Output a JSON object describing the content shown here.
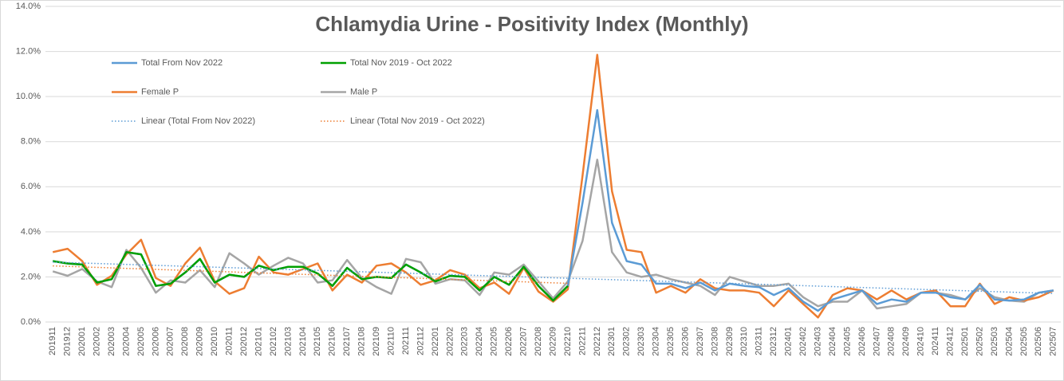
{
  "chart_data": {
    "type": "line",
    "title": "Chlamydia Urine - Positivity Index (Monthly)",
    "categories": [
      "201911",
      "201912",
      "202001",
      "202002",
      "202003",
      "202004",
      "202005",
      "202006",
      "202007",
      "202008",
      "202009",
      "202010",
      "202011",
      "202012",
      "202101",
      "202102",
      "202103",
      "202104",
      "202105",
      "202106",
      "202107",
      "202108",
      "202109",
      "202110",
      "202111",
      "202112",
      "202201",
      "202202",
      "202203",
      "202204",
      "202205",
      "202206",
      "202207",
      "202208",
      "202209",
      "202210",
      "202211",
      "202212",
      "202301",
      "202302",
      "202303",
      "202304",
      "202305",
      "202306",
      "202307",
      "202308",
      "202309",
      "202310",
      "202311",
      "202312",
      "202401",
      "202402",
      "202403",
      "202404",
      "202405",
      "202406",
      "202407",
      "202408",
      "202409",
      "202410",
      "202411",
      "202412",
      "202501",
      "202502",
      "202503",
      "202504",
      "202505",
      "202506",
      "202507"
    ],
    "ylim": [
      0,
      14
    ],
    "yticks": [
      {
        "value": 0,
        "label": "0.0%"
      },
      {
        "value": 2,
        "label": "2.0%"
      },
      {
        "value": 4,
        "label": "4.0%"
      },
      {
        "value": 6,
        "label": "6.0%"
      },
      {
        "value": 8,
        "label": "8.0%"
      },
      {
        "value": 10,
        "label": "10.0%"
      },
      {
        "value": 12,
        "label": "12.0%"
      },
      {
        "value": 14,
        "label": "14.0%"
      }
    ],
    "grid": true,
    "series": [
      {
        "name": "Total From Nov 2022",
        "color": "#5b9bd5",
        "trendline": {
          "name": "Linear (Total From Nov 2022)",
          "color": "#5b9bd5"
        },
        "values": [
          2.7,
          2.6,
          2.55,
          1.75,
          1.9,
          3.1,
          3.0,
          1.6,
          1.7,
          2.2,
          2.8,
          1.75,
          2.1,
          2.0,
          2.5,
          2.3,
          2.45,
          2.45,
          2.15,
          1.6,
          2.4,
          1.9,
          2.0,
          1.95,
          2.55,
          2.2,
          1.8,
          2.05,
          2.0,
          1.4,
          2.0,
          1.65,
          2.45,
          1.6,
          0.95,
          1.6,
          5.3,
          9.4,
          4.4,
          2.7,
          2.55,
          1.7,
          1.7,
          1.5,
          1.75,
          1.4,
          1.7,
          1.6,
          1.55,
          1.2,
          1.5,
          0.9,
          0.5,
          1.0,
          1.2,
          1.4,
          0.8,
          1.0,
          0.9,
          1.3,
          1.3,
          1.1,
          1.0,
          1.65,
          1.0,
          0.95,
          1.0,
          1.3,
          1.4
        ]
      },
      {
        "name": "Total Nov 2019 - Oct 2022",
        "color": "#00a000",
        "trendline": {
          "name": "Linear (Total Nov 2019 - Oct 2022)",
          "color": "#ed7d31"
        },
        "values": [
          2.7,
          2.6,
          2.55,
          1.75,
          1.9,
          3.1,
          3.0,
          1.6,
          1.7,
          2.2,
          2.8,
          1.75,
          2.1,
          2.0,
          2.5,
          2.3,
          2.45,
          2.45,
          2.15,
          1.6,
          2.4,
          1.9,
          2.0,
          1.95,
          2.55,
          2.2,
          1.8,
          2.05,
          2.0,
          1.4,
          2.0,
          1.65,
          2.45,
          1.6,
          0.95,
          1.6,
          null,
          null,
          null,
          null,
          null,
          null,
          null,
          null,
          null,
          null,
          null,
          null,
          null,
          null,
          null,
          null,
          null,
          null,
          null,
          null,
          null,
          null,
          null,
          null,
          null,
          null,
          null,
          null,
          null,
          null,
          null,
          null,
          null
        ]
      },
      {
        "name": "Female P",
        "color": "#ed7d31",
        "values": [
          3.1,
          3.25,
          2.7,
          1.65,
          2.05,
          3.0,
          3.65,
          1.95,
          1.6,
          2.6,
          3.3,
          1.8,
          1.25,
          1.5,
          2.9,
          2.2,
          2.1,
          2.35,
          2.6,
          1.4,
          2.1,
          1.75,
          2.5,
          2.6,
          2.2,
          1.65,
          1.85,
          2.3,
          2.1,
          1.5,
          1.75,
          1.25,
          2.4,
          1.35,
          0.9,
          1.45,
          6.5,
          11.85,
          5.8,
          3.2,
          3.1,
          1.3,
          1.6,
          1.3,
          1.9,
          1.5,
          1.4,
          1.4,
          1.3,
          0.7,
          1.4,
          0.8,
          0.2,
          1.2,
          1.5,
          1.4,
          1.0,
          1.4,
          1.0,
          1.3,
          1.4,
          0.7,
          0.7,
          1.7,
          0.8,
          1.1,
          0.95,
          1.1,
          1.4
        ]
      },
      {
        "name": "Male P",
        "color": "#a5a5a5",
        "values": [
          2.25,
          2.05,
          2.35,
          1.8,
          1.55,
          3.2,
          2.4,
          1.3,
          1.85,
          1.75,
          2.3,
          1.55,
          3.05,
          2.6,
          2.1,
          2.5,
          2.85,
          2.6,
          1.75,
          1.85,
          2.75,
          1.95,
          1.55,
          1.25,
          2.8,
          2.65,
          1.7,
          1.9,
          1.85,
          1.2,
          2.2,
          2.1,
          2.55,
          1.8,
          1.05,
          1.8,
          3.6,
          7.2,
          3.1,
          2.2,
          2.0,
          2.1,
          1.9,
          1.75,
          1.6,
          1.2,
          2.0,
          1.8,
          1.6,
          1.6,
          1.7,
          1.1,
          0.7,
          0.9,
          0.9,
          1.4,
          0.6,
          0.7,
          0.8,
          1.3,
          1.3,
          1.2,
          1.0,
          1.5,
          1.1,
          0.95,
          0.9,
          1.3,
          1.4
        ]
      }
    ]
  }
}
